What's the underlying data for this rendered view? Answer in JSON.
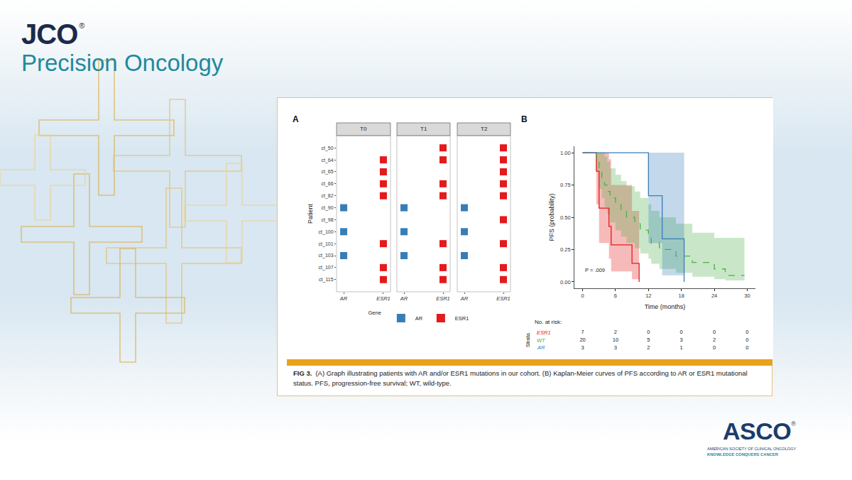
{
  "header": {
    "journal": "JCO",
    "registered": "®",
    "subtitle": "Precision Oncology"
  },
  "figure": {
    "caption_label": "FIG 3.",
    "caption": "(A) Graph illustrating patients with AR and/or ESR1 mutations in our cohort. (B) Kaplan-Meier curves of PFS according to AR or ESR1 mutational status. PFS, progression-free survival; WT, wild-type."
  },
  "chart_data": [
    {
      "type": "tile",
      "panel_label": "A",
      "y_label": "Patient",
      "categories": [
        "AR",
        "ESR1"
      ],
      "patients": [
        "ct_50",
        "ct_64",
        "ct_65",
        "ct_66",
        "ct_82",
        "ct_90",
        "ct_98",
        "ct_100",
        "ct_101",
        "ct_103",
        "ct_107",
        "ct_115"
      ],
      "marker": "square",
      "legend": "bottom",
      "legend_title": "Gene",
      "series": [
        {
          "name": "AR",
          "color": "#377eb8"
        },
        {
          "name": "ESR1",
          "color": "#e41a1c"
        }
      ],
      "facets": [
        {
          "title": "T0",
          "cells": {
            "AR": [
              "ct_90",
              "ct_100",
              "ct_103"
            ],
            "ESR1": [
              "ct_64",
              "ct_65",
              "ct_66",
              "ct_82",
              "ct_101",
              "ct_107",
              "ct_115"
            ]
          }
        },
        {
          "title": "T1",
          "cells": {
            "AR": [
              "ct_90",
              "ct_100",
              "ct_103"
            ],
            "ESR1": [
              "ct_50",
              "ct_64",
              "ct_66",
              "ct_82",
              "ct_101",
              "ct_107",
              "ct_115"
            ]
          }
        },
        {
          "title": "T2",
          "cells": {
            "AR": [
              "ct_90",
              "ct_100",
              "ct_103"
            ],
            "ESR1": [
              "ct_50",
              "ct_64",
              "ct_65",
              "ct_66",
              "ct_82",
              "ct_98",
              "ct_101",
              "ct_107",
              "ct_115"
            ]
          }
        }
      ]
    },
    {
      "type": "line",
      "panel_label": "B",
      "x_label": "Time (months)",
      "y_label": "PFS (probability)",
      "xlim": [
        -1.5,
        31.5
      ],
      "xticks": [
        0,
        6,
        12,
        18,
        24,
        30
      ],
      "ylim": [
        -0.05,
        1.05
      ],
      "yticks": [
        {
          "value": 0,
          "label": "0.00"
        },
        {
          "value": 0.25,
          "label": "0.25"
        },
        {
          "value": 0.5,
          "label": "0.50"
        },
        {
          "value": 0.75,
          "label": "0.75"
        },
        {
          "value": 1,
          "label": "1.00"
        }
      ],
      "grid": false,
      "annotation": "P = .009",
      "series": [
        {
          "name": "ESR1",
          "color": "#e41a1c",
          "line_style": "solid",
          "x": [
            0,
            2.5,
            3,
            4.8,
            5.2,
            9,
            10.3
          ],
          "values": [
            1,
            0.857,
            0.571,
            0.429,
            0.286,
            0.143,
            0
          ],
          "lower": [
            1,
            0.6,
            0.3,
            0.18,
            0.08,
            0.02,
            0
          ],
          "upper": [
            1,
            1,
            1,
            0.95,
            0.75,
            0.55,
            0
          ]
        },
        {
          "name": "WT",
          "color": "#4daf4a",
          "line_style": "dashed",
          "x": [
            0,
            2.5,
            3,
            3.5,
            4,
            4.5,
            5,
            6,
            7,
            8,
            9.5,
            10.5,
            12,
            12.5,
            14,
            17,
            18.5,
            20,
            24,
            26,
            29.5
          ],
          "values": [
            1,
            0.95,
            0.85,
            0.8,
            0.75,
            0.7,
            0.65,
            0.6,
            0.55,
            0.5,
            0.45,
            0.4,
            0.35,
            0.3,
            0.25,
            0.2,
            0.2,
            0.15,
            0.1,
            0.05,
            0.05
          ],
          "lower": [
            1,
            0.86,
            0.72,
            0.65,
            0.58,
            0.52,
            0.46,
            0.4,
            0.35,
            0.3,
            0.26,
            0.22,
            0.18,
            0.14,
            0.1,
            0.07,
            0.07,
            0.04,
            0.02,
            0.01,
            0.01
          ],
          "upper": [
            1,
            1,
            1,
            1,
            0.97,
            0.93,
            0.88,
            0.83,
            0.78,
            0.74,
            0.7,
            0.65,
            0.6,
            0.55,
            0.5,
            0.45,
            0.45,
            0.38,
            0.34,
            0.34,
            0.34
          ]
        },
        {
          "name": "AR",
          "color": "#377eb8",
          "line_style": "solid",
          "x": [
            0,
            12,
            14.5,
            18.5
          ],
          "values": [
            1,
            0.667,
            0.333,
            0
          ],
          "lower": [
            1,
            0.3,
            0.05,
            0
          ],
          "upper": [
            1,
            1,
            1,
            0
          ]
        }
      ],
      "risk_table": {
        "title": "No. at risk:",
        "strata_label": "Strata",
        "times": [
          0,
          6,
          12,
          18,
          24,
          30
        ],
        "rows": [
          {
            "name": "ESR1",
            "color": "#e41a1c",
            "values": [
              7,
              2,
              0,
              0,
              0,
              0
            ]
          },
          {
            "name": "WT",
            "color": "#4daf4a",
            "values": [
              20,
              10,
              5,
              3,
              2,
              0
            ]
          },
          {
            "name": "AR",
            "color": "#377eb8",
            "values": [
              3,
              3,
              2,
              1,
              0,
              0
            ]
          }
        ]
      }
    }
  ],
  "footer": {
    "logo": "ASCO",
    "registered": "®",
    "line1": "AMERICAN SOCIETY OF CLINICAL ONCOLOGY",
    "line2": "KNOWLEDGE CONQUERS CANCER"
  }
}
